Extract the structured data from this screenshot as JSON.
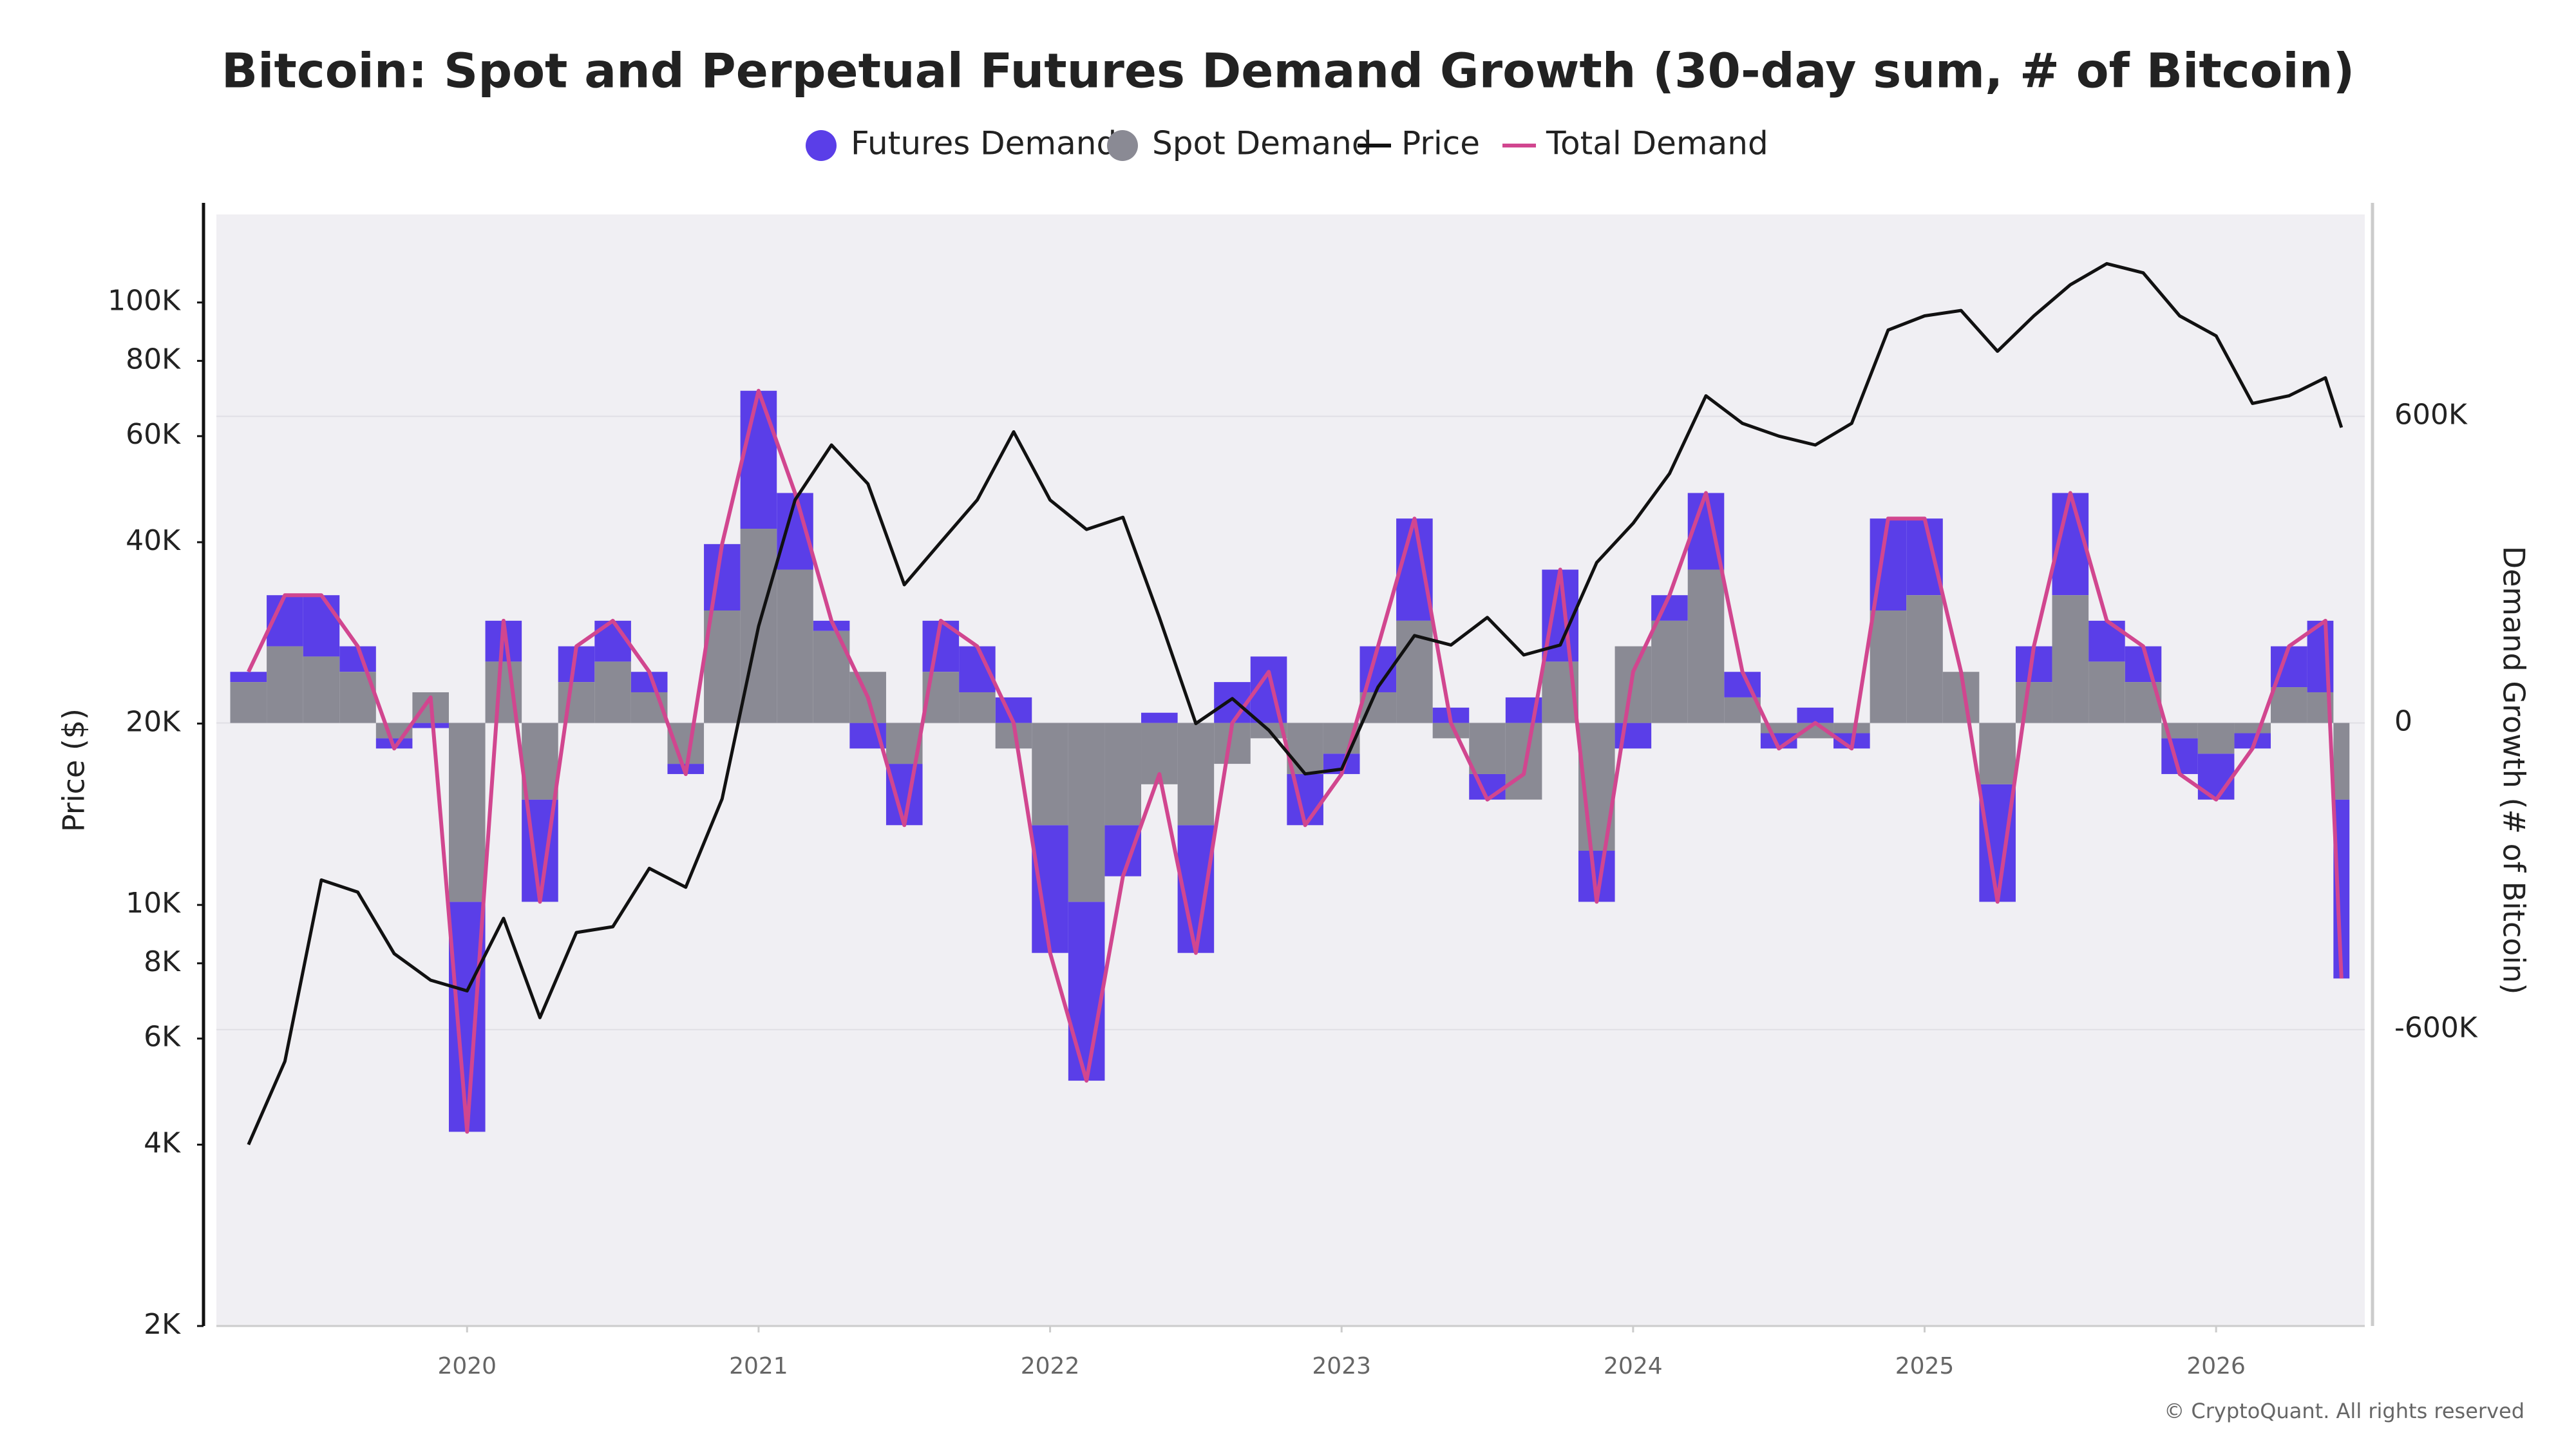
{
  "chart_data": {
    "type": "combo",
    "title": "Bitcoin: Spot and Perpetual Futures Demand Growth (30-day sum, # of Bitcoin)",
    "y_label": "Price ($)",
    "y2_label": "Demand Growth (# of Bitcoin)",
    "credit": "© CryptoQuant. All rights reserved",
    "x": [
      2019.25,
      2019.375,
      2019.5,
      2019.625,
      2019.75,
      2019.875,
      2020,
      2020.125,
      2020.25,
      2020.375,
      2020.5,
      2020.625,
      2020.75,
      2020.875,
      2021,
      2021.125,
      2021.25,
      2021.375,
      2021.5,
      2021.625,
      2021.75,
      2021.875,
      2022,
      2022.125,
      2022.25,
      2022.375,
      2022.5,
      2022.625,
      2022.75,
      2022.875,
      2023,
      2023.125,
      2023.25,
      2023.375,
      2023.5,
      2023.625,
      2023.75,
      2023.875,
      2024,
      2024.125,
      2024.25,
      2024.375,
      2024.5,
      2024.625,
      2024.75,
      2024.875,
      2025,
      2025.125,
      2025.25,
      2025.375,
      2025.5,
      2025.625,
      2025.75,
      2025.875,
      2026,
      2026.125,
      2026.25,
      2026.375,
      2026.43
    ],
    "xlim": [
      2019.14,
      2026.51
    ],
    "xticks": [
      2020,
      2021,
      2022,
      2023,
      2024,
      2025,
      2026
    ],
    "y_scale": "log",
    "ylim": [
      2000,
      140000
    ],
    "yticks": [
      {
        "value": 2000,
        "label": "2K"
      },
      {
        "value": 4000,
        "label": "4K"
      },
      {
        "value": 6000,
        "label": "6K"
      },
      {
        "value": 8000,
        "label": "8K"
      },
      {
        "value": 10000,
        "label": "10K"
      },
      {
        "value": 20000,
        "label": "20K"
      },
      {
        "value": 40000,
        "label": "40K"
      },
      {
        "value": 60000,
        "label": "60K"
      },
      {
        "value": 80000,
        "label": "80K"
      },
      {
        "value": 100000,
        "label": "100K"
      }
    ],
    "y2lim": [
      -1180000,
      995000
    ],
    "y2ticks": [
      {
        "value": -600000,
        "label": "-600K"
      },
      0,
      {
        "value": 600000,
        "label": "600K"
      }
    ],
    "grid": true,
    "legend": "top",
    "series": [
      {
        "name": "Futures Demand",
        "color": "#5a3ee8",
        "type": "bar",
        "axis": "y2",
        "values": [
          20000,
          100000,
          120000,
          50000,
          -20000,
          -10000,
          -450000,
          80000,
          -200000,
          70000,
          80000,
          40000,
          -20000,
          130000,
          270000,
          150000,
          20000,
          -50000,
          -120000,
          100000,
          90000,
          50000,
          -250000,
          -350000,
          -100000,
          20000,
          -250000,
          80000,
          130000,
          -100000,
          -40000,
          90000,
          200000,
          30000,
          -50000,
          50000,
          180000,
          -100000,
          -50000,
          50000,
          150000,
          50000,
          -30000,
          30000,
          -30000,
          180000,
          150000,
          0,
          -230000,
          70000,
          200000,
          80000,
          70000,
          -70000,
          -90000,
          -30000,
          80000,
          140000,
          -350000
        ]
      },
      {
        "name": "Spot Demand",
        "color": "#8a8a94",
        "type": "bar",
        "axis": "y2",
        "values": [
          80000,
          150000,
          130000,
          100000,
          -30000,
          60000,
          -350000,
          120000,
          -150000,
          80000,
          120000,
          60000,
          -80000,
          220000,
          380000,
          300000,
          180000,
          100000,
          -80000,
          100000,
          60000,
          -50000,
          -200000,
          -350000,
          -200000,
          -120000,
          -200000,
          -80000,
          -30000,
          -100000,
          -60000,
          60000,
          200000,
          -30000,
          -100000,
          -150000,
          120000,
          -250000,
          150000,
          200000,
          300000,
          50000,
          -20000,
          -30000,
          -20000,
          220000,
          250000,
          100000,
          -120000,
          80000,
          250000,
          120000,
          80000,
          -30000,
          -60000,
          -20000,
          70000,
          60000,
          -150000
        ]
      },
      {
        "name": "Price",
        "color": "#111111",
        "type": "line",
        "axis": "y",
        "values": [
          4000,
          5500,
          11000,
          10500,
          8300,
          7500,
          7200,
          9500,
          6500,
          9000,
          9200,
          11500,
          10700,
          15000,
          29000,
          47000,
          58000,
          50000,
          34000,
          40000,
          47000,
          61000,
          47000,
          42000,
          44000,
          30000,
          20000,
          22000,
          19500,
          16500,
          16800,
          23000,
          28000,
          27000,
          30000,
          26000,
          27000,
          37000,
          43000,
          52000,
          70000,
          63000,
          60000,
          58000,
          63000,
          90000,
          95000,
          97000,
          83000,
          95000,
          107000,
          116000,
          112000,
          95000,
          88000,
          68000,
          70000,
          75000,
          62000
        ]
      },
      {
        "name": "Total Demand",
        "color": "#d1468f",
        "type": "line",
        "axis": "y2",
        "values": [
          100000,
          250000,
          250000,
          150000,
          -50000,
          50000,
          -800000,
          200000,
          -350000,
          150000,
          200000,
          100000,
          -100000,
          350000,
          650000,
          450000,
          200000,
          50000,
          -200000,
          200000,
          150000,
          0,
          -450000,
          -700000,
          -300000,
          -100000,
          -450000,
          0,
          100000,
          -200000,
          -100000,
          150000,
          400000,
          0,
          -150000,
          -100000,
          300000,
          -350000,
          100000,
          250000,
          450000,
          100000,
          -50000,
          0,
          -50000,
          400000,
          400000,
          100000,
          -350000,
          150000,
          450000,
          200000,
          150000,
          -100000,
          -150000,
          -50000,
          150000,
          200000,
          -500000
        ]
      }
    ]
  }
}
